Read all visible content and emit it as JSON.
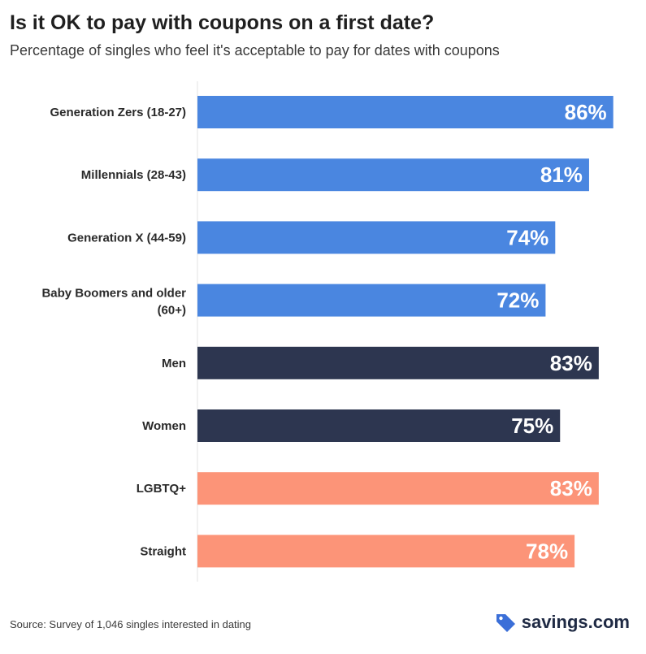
{
  "title": "Is it OK to pay with coupons on a first date?",
  "subtitle": "Percentage of singles who feel it's acceptable to pay for dates with coupons",
  "source": "Source: Survey of 1,046 singles interested in dating",
  "brand": {
    "name": "savings.com",
    "icon": "tag-icon",
    "color": "#3b6fd8"
  },
  "colors": {
    "generation": "#4a86e0",
    "gender": "#2d3650",
    "orientation": "#fc9478"
  },
  "chart_data": {
    "type": "bar",
    "orientation": "horizontal",
    "categories": [
      "Generation Zers (18-27)",
      "Millennials (28-43)",
      "Generation X (44-59)",
      "Baby Boomers and older (60+)",
      "Men",
      "Women",
      "LGBTQ+",
      "Straight"
    ],
    "values": [
      86,
      81,
      74,
      72,
      83,
      75,
      83,
      78
    ],
    "labels": [
      "86%",
      "81%",
      "74%",
      "72%",
      "83%",
      "75%",
      "83%",
      "78%"
    ],
    "groups": [
      "generation",
      "generation",
      "generation",
      "generation",
      "gender",
      "gender",
      "orientation",
      "orientation"
    ],
    "xlim": [
      0,
      100
    ],
    "unit": "%",
    "grid": false
  }
}
